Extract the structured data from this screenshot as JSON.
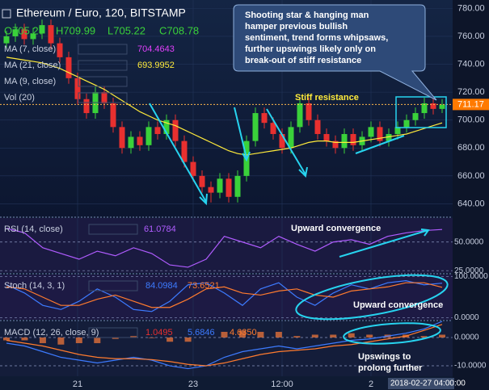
{
  "chart_data": [
    {
      "type": "candlestick",
      "title": "Ethereum / Euro, 120, BITSTAMP",
      "ohlc_readout": [
        "O705.27",
        "H709.99",
        "L705.22",
        "C708.78"
      ],
      "indicators": [
        {
          "name": "MA (7, close)",
          "readout": "704.4643",
          "color": "#e040fb"
        },
        {
          "name": "MA (21, close)",
          "readout": "693.9952",
          "color": "#ffeb3b"
        },
        {
          "name": "MA (9, close)",
          "readout": null,
          "color": "#ff9800"
        },
        {
          "name": "Vol (20)",
          "readout": null,
          "color": "#4fc3f7"
        }
      ],
      "up_color": "#3ad13a",
      "down_color": "#e8302f",
      "open": [
        755,
        760,
        765,
        758,
        762,
        768,
        755,
        745,
        730,
        715,
        705,
        720,
        712,
        695,
        680,
        688,
        682,
        695,
        690,
        700,
        685,
        670,
        660,
        652,
        648,
        658,
        645,
        660,
        685,
        705,
        698,
        690,
        680,
        695,
        712,
        700,
        690,
        685,
        680,
        690,
        682,
        688,
        695,
        685,
        690,
        695,
        700,
        705,
        712,
        708
      ],
      "high": [
        764,
        769,
        769,
        766,
        772,
        772,
        759,
        749,
        734,
        719,
        724,
        724,
        716,
        699,
        692,
        692,
        699,
        699,
        704,
        704,
        689,
        674,
        664,
        656,
        662,
        662,
        664,
        689,
        709,
        709,
        702,
        694,
        699,
        716,
        716,
        704,
        694,
        689,
        694,
        694,
        692,
        699,
        699,
        694,
        699,
        704,
        709,
        716,
        716,
        715
      ],
      "low": [
        751,
        756,
        754,
        754,
        758,
        751,
        741,
        726,
        711,
        701,
        701,
        708,
        691,
        676,
        676,
        678,
        678,
        686,
        686,
        681,
        666,
        656,
        648,
        641,
        644,
        641,
        641,
        656,
        681,
        694,
        686,
        676,
        676,
        691,
        696,
        686,
        681,
        676,
        676,
        678,
        678,
        684,
        681,
        681,
        686,
        691,
        696,
        701,
        704,
        705
      ],
      "close": [
        760,
        765,
        758,
        762,
        768,
        755,
        745,
        730,
        715,
        705,
        720,
        712,
        695,
        680,
        688,
        682,
        695,
        690,
        700,
        685,
        670,
        660,
        652,
        648,
        658,
        645,
        660,
        685,
        705,
        698,
        690,
        680,
        695,
        712,
        700,
        690,
        685,
        680,
        690,
        682,
        688,
        695,
        685,
        690,
        695,
        700,
        705,
        712,
        708,
        711
      ],
      "ma": {
        "color": "#ffeb3b",
        "values": [
          745,
          744,
          743,
          742,
          741,
          739,
          737,
          734,
          731,
          728,
          725,
          722,
          718,
          714,
          710,
          706,
          703,
          700,
          698,
          696,
          693,
          690,
          687,
          684,
          681,
          678,
          676,
          675,
          676,
          677,
          678,
          679,
          680,
          682,
          684,
          685,
          685,
          684,
          684,
          684,
          685,
          686,
          687,
          688,
          689,
          690,
          692,
          694,
          696,
          698
        ]
      },
      "last_price": {
        "value": 711.17,
        "label": "711.17"
      },
      "ylim": [
        631,
        786
      ],
      "yticks": [
        {
          "value": 640,
          "label": "640.00"
        },
        {
          "value": 660,
          "label": "660.00"
        },
        {
          "value": 680,
          "label": "680.00"
        },
        {
          "value": 700,
          "label": "700.00"
        },
        {
          "value": 720,
          "label": "720.00"
        },
        {
          "value": 740,
          "label": "740.00"
        },
        {
          "value": 760,
          "label": "760.00"
        },
        {
          "value": 780,
          "label": "780.00"
        }
      ],
      "xticks": [
        {
          "value": 8,
          "label": "21"
        },
        {
          "value": 21,
          "label": "23"
        },
        {
          "value": 31,
          "label": "12:00"
        },
        {
          "value": 41,
          "label": "2"
        }
      ],
      "time_readout": "2018-02-27 04:00:00",
      "annotations": {
        "callout": [
          "Shooting star & hanging man",
          "hamper previous bullish",
          "sentiment, trend forms whipsaws,",
          "further upswings likely only on",
          "break-out of stiff resistance"
        ],
        "resistance": "Stiff resistance"
      }
    },
    {
      "type": "line",
      "title": "RSI (14, close)",
      "readouts": [
        "61.0784"
      ],
      "series": [
        {
          "color": "#b05cff",
          "values": [
            62,
            58,
            45,
            40,
            35,
            42,
            38,
            45,
            40,
            30,
            28,
            35,
            55,
            50,
            45,
            55,
            48,
            42,
            50,
            52,
            48,
            55,
            58,
            60,
            61
          ]
        }
      ],
      "ylim": [
        23,
        71
      ],
      "yticks": [
        {
          "value": 25,
          "label": "25.0000"
        },
        {
          "value": 50,
          "label": "50.0000"
        }
      ],
      "annotation": "Upward convergence"
    },
    {
      "type": "line",
      "title": "Stoch (14, 3, 1)",
      "readouts": [
        "84.0984",
        "73.6521"
      ],
      "series": [
        {
          "color": "#3d7bff",
          "values": [
            80,
            60,
            30,
            20,
            40,
            70,
            50,
            20,
            15,
            40,
            80,
            85,
            60,
            30,
            70,
            85,
            50,
            30,
            60,
            80,
            70,
            85,
            90,
            80,
            84
          ]
        },
        {
          "color": "#ff7b2e",
          "values": [
            75,
            70,
            50,
            30,
            30,
            45,
            55,
            40,
            25,
            25,
            45,
            70,
            75,
            60,
            55,
            65,
            70,
            55,
            50,
            65,
            70,
            75,
            85,
            85,
            74
          ]
        }
      ],
      "ylim": [
        -5,
        105
      ],
      "yticks": [
        {
          "value": 0,
          "label": "0.0000"
        },
        {
          "value": 100,
          "label": "100.0000"
        }
      ],
      "annotation": "Upward convergence"
    },
    {
      "type": "line",
      "title": "MACD (12, 26, close, 9)",
      "readouts": [
        "1.0495",
        "5.6846",
        "4.6350"
      ],
      "histogram": {
        "color": "#e0703a",
        "values": [
          -1,
          -1,
          -2,
          -2.5,
          -2,
          -2,
          -0.5,
          0.5,
          -0.2,
          -1.5,
          -1.5,
          0,
          2,
          2.5,
          2,
          2,
          0.5,
          1,
          1,
          1.5,
          1,
          1,
          1,
          0.5,
          1.0
        ]
      },
      "series": [
        {
          "color": "#3d7bff",
          "values": [
            -2,
            -3,
            -5,
            -7,
            -8,
            -9,
            -8,
            -7,
            -8,
            -10,
            -11,
            -10,
            -7,
            -5,
            -4,
            -3,
            -4,
            -3,
            -2,
            -1,
            -0.5,
            0.5,
            1.5,
            3,
            5.7
          ]
        },
        {
          "color": "#ff7b2e",
          "values": [
            -1,
            -2,
            -3,
            -4.5,
            -6,
            -7,
            -7.5,
            -7.5,
            -7.8,
            -8.5,
            -9.5,
            -10,
            -9,
            -7.5,
            -6,
            -5,
            -4.5,
            -4,
            -3,
            -2.5,
            -1.5,
            -0.5,
            0.5,
            2.5,
            4.6
          ]
        }
      ],
      "ylim": [
        -13.7,
        5.7
      ],
      "yticks": [
        {
          "value": -10,
          "label": "-10.0000"
        },
        {
          "value": 0,
          "label": "0.0000"
        }
      ],
      "annotation": [
        "Upswings to",
        "prolong further"
      ]
    }
  ]
}
